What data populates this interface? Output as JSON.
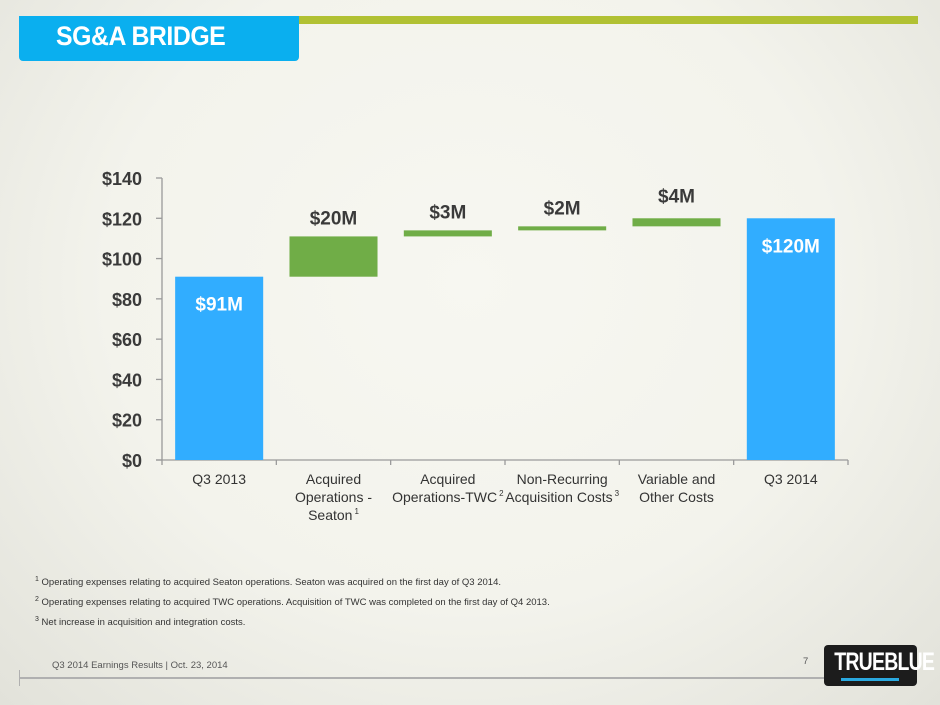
{
  "header": {
    "title": "SG&A BRIDGE"
  },
  "chart_data": {
    "type": "bar",
    "subtype": "waterfall",
    "title": "",
    "xlabel": "",
    "ylabel": "",
    "ylim": [
      0,
      140
    ],
    "yticks": [
      0,
      20,
      40,
      60,
      80,
      100,
      120,
      140
    ],
    "ytick_labels": [
      "$0",
      "$20",
      "$40",
      "$60",
      "$80",
      "$100",
      "$120",
      "$140"
    ],
    "grid": false,
    "categories": [
      {
        "lines": [
          "Q3 2013"
        ],
        "sup": ""
      },
      {
        "lines": [
          "Acquired",
          "Operations -",
          "Seaton"
        ],
        "sup": "1"
      },
      {
        "lines": [
          "Acquired",
          "Operations-TWC"
        ],
        "sup": "2"
      },
      {
        "lines": [
          "Non-Recurring",
          "Acquisition Costs"
        ],
        "sup": "3"
      },
      {
        "lines": [
          "Variable and",
          "Other Costs"
        ],
        "sup": ""
      },
      {
        "lines": [
          "Q3 2014"
        ],
        "sup": ""
      }
    ],
    "bars": [
      {
        "kind": "total",
        "start": 0,
        "end": 91,
        "label": "$91M"
      },
      {
        "kind": "increase",
        "start": 91,
        "end": 111,
        "label": "$20M"
      },
      {
        "kind": "increase",
        "start": 111,
        "end": 114,
        "label": "$3M"
      },
      {
        "kind": "increase",
        "start": 114,
        "end": 116,
        "label": "$2M"
      },
      {
        "kind": "increase",
        "start": 116,
        "end": 120,
        "label": "$4M"
      },
      {
        "kind": "total",
        "start": 0,
        "end": 120,
        "label": "$120M"
      }
    ],
    "colors": {
      "total": "#31adff",
      "increase": "#70ad47",
      "total_label": "#ffffff",
      "increase_label": "#3a3a3a"
    }
  },
  "footnotes": [
    {
      "num": "1",
      "text": "Operating expenses relating to acquired Seaton operations. Seaton was acquired on the first day of Q3 2014."
    },
    {
      "num": "2",
      "text": "Operating expenses relating to acquired TWC operations. Acquisition of TWC was completed on the first day of Q4 2013."
    },
    {
      "num": "3",
      "text": "Net increase in acquisition and integration costs."
    }
  ],
  "footer": {
    "text": "Q3 2014 Earnings Results | Oct. 23, 2014",
    "page": "7",
    "logo": "TRUEBLUE"
  }
}
